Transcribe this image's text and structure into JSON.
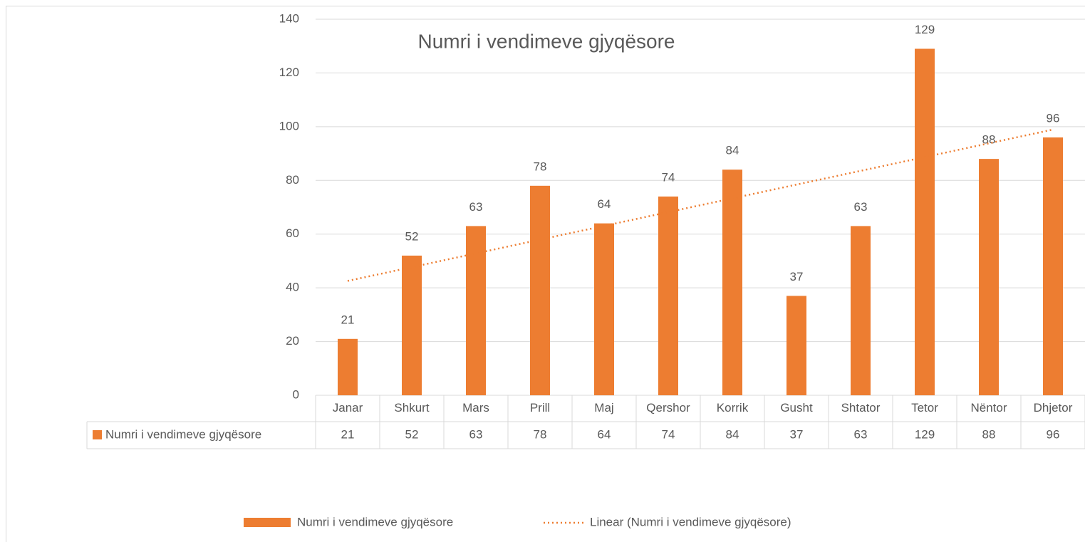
{
  "chart_data": {
    "type": "bar",
    "title": "Numri i vendimeve gjyqësore",
    "categories": [
      "Janar",
      "Shkurt",
      "Mars",
      "Prill",
      "Maj",
      "Qershor",
      "Korrik",
      "Gusht",
      "Shtator",
      "Tetor",
      "Nëntor",
      "Dhjetor"
    ],
    "series": [
      {
        "name": "Numri i vendimeve gjyqësore",
        "color": "#ed7d31",
        "values": [
          21,
          52,
          63,
          78,
          64,
          74,
          84,
          37,
          63,
          129,
          88,
          96
        ]
      }
    ],
    "trendline": {
      "type": "linear",
      "name": "Linear (Numri i vendimeve gjyqësore)",
      "color": "#ed7d31"
    },
    "ylim": [
      0,
      140
    ],
    "yticks": [
      0,
      20,
      40,
      60,
      80,
      100,
      120,
      140
    ],
    "grid": true,
    "data_table": true,
    "legend": "bottom"
  }
}
